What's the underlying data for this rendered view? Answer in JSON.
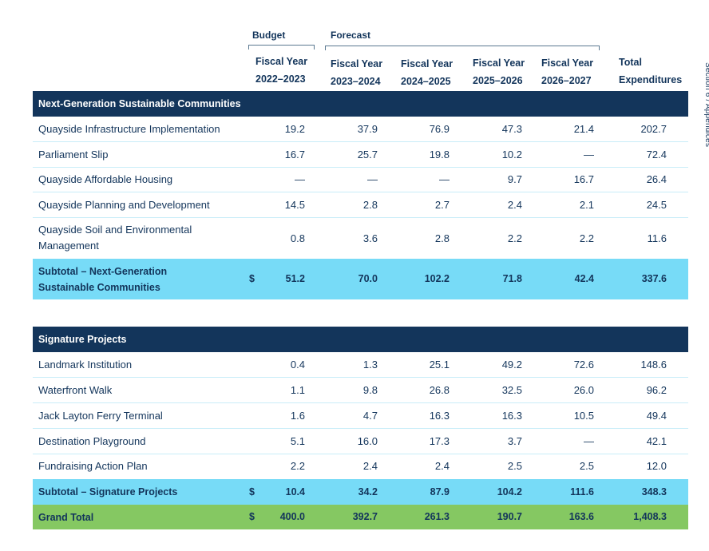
{
  "side_tab": "Section 6 / Appendices",
  "header": {
    "budget_label": "Budget",
    "forecast_label": "Forecast",
    "columns": [
      {
        "line1": "Fiscal Year",
        "line2": "2022–2023"
      },
      {
        "line1": "Fiscal Year",
        "line2": "2023–2024"
      },
      {
        "line1": "Fiscal Year",
        "line2": "2024–2025"
      },
      {
        "line1": "Fiscal Year",
        "line2": "2025–2026"
      },
      {
        "line1": "Fiscal Year",
        "line2": "2026–2027"
      },
      {
        "line1": "Total",
        "line2": "Expenditures"
      }
    ]
  },
  "sections": [
    {
      "title": "Next-Generation Sustainable Communities",
      "rows": [
        {
          "label": "Quayside Infrastructure Implementation",
          "values": [
            "19.2",
            "37.9",
            "76.9",
            "47.3",
            "21.4",
            "202.7"
          ]
        },
        {
          "label": "Parliament Slip",
          "values": [
            "16.7",
            "25.7",
            "19.8",
            "10.2",
            "—",
            "72.4"
          ]
        },
        {
          "label": "Quayside Affordable Housing",
          "values": [
            "—",
            "—",
            "—",
            "9.7",
            "16.7",
            "26.4"
          ]
        },
        {
          "label": "Quayside Planning and Development",
          "values": [
            "14.5",
            "2.8",
            "2.7",
            "2.4",
            "2.1",
            "24.5"
          ]
        },
        {
          "label_line1": "Quayside Soil and Environmental",
          "label_line2": "Management",
          "values": [
            "0.8",
            "3.6",
            "2.8",
            "2.2",
            "2.2",
            "11.6"
          ]
        }
      ],
      "subtotal": {
        "label_line1": "Subtotal – Next-Generation",
        "label_line2": "Sustainable Communities",
        "currency": "$",
        "values": [
          "51.2",
          "70.0",
          "102.2",
          "71.8",
          "42.4",
          "337.6"
        ]
      }
    },
    {
      "title": "Signature Projects",
      "rows": [
        {
          "label": "Landmark Institution",
          "values": [
            "0.4",
            "1.3",
            "25.1",
            "49.2",
            "72.6",
            "148.6"
          ]
        },
        {
          "label": "Waterfront Walk",
          "values": [
            "1.1",
            "9.8",
            "26.8",
            "32.5",
            "26.0",
            "96.2"
          ]
        },
        {
          "label": "Jack Layton Ferry Terminal",
          "values": [
            "1.6",
            "4.7",
            "16.3",
            "16.3",
            "10.5",
            "49.4"
          ]
        },
        {
          "label": "Destination Playground",
          "values": [
            "5.1",
            "16.0",
            "17.3",
            "3.7",
            "—",
            "42.1"
          ]
        },
        {
          "label": "Fundraising Action Plan",
          "values": [
            "2.2",
            "2.4",
            "2.4",
            "2.5",
            "2.5",
            "12.0"
          ]
        }
      ],
      "subtotal": {
        "label": "Subtotal – Signature Projects",
        "currency": "$",
        "values": [
          "10.4",
          "34.2",
          "87.9",
          "104.2",
          "111.6",
          "348.3"
        ]
      }
    }
  ],
  "grand_total": {
    "label": "Grand Total",
    "currency": "$",
    "values": [
      "400.0",
      "392.7",
      "261.3",
      "190.7",
      "163.6",
      "1,408.3"
    ]
  },
  "colors": {
    "navy": "#13355b",
    "subtotal_cyan": "#77dbf7",
    "grand_total_green": "#85c862",
    "row_divider": "#c9edf8"
  }
}
